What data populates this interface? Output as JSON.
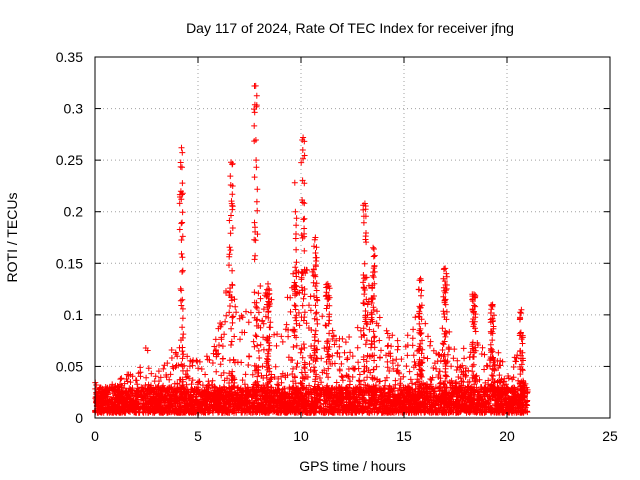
{
  "chart_data": {
    "type": "scatter",
    "title": "Day 117 of 2024, Rate Of TEC Index for receiver jfng",
    "xlabel": "GPS time / hours",
    "ylabel": "ROTI / TECUs",
    "xlim": [
      0,
      25
    ],
    "ylim": [
      0,
      0.35
    ],
    "x_ticks": [
      0,
      5,
      10,
      15,
      20,
      25
    ],
    "x_tick_labels": [
      "0",
      "5",
      "10",
      "15",
      "20",
      "25"
    ],
    "y_ticks": [
      0,
      0.05,
      0.1,
      0.15,
      0.2,
      0.25,
      0.3,
      0.35
    ],
    "y_tick_labels": [
      "0",
      "0.05",
      "0.1",
      "0.15",
      "0.2",
      "0.25",
      "0.3",
      "0.35"
    ],
    "grid": true,
    "marker": "+",
    "series_color": "#ff0000",
    "data_x_range": [
      0,
      21
    ],
    "baseline_band": [
      0.005,
      0.03
    ],
    "envelope": [
      [
        0.0,
        0.035
      ],
      [
        0.5,
        0.03
      ],
      [
        1.0,
        0.035
      ],
      [
        1.5,
        0.045
      ],
      [
        2.0,
        0.04
      ],
      [
        2.5,
        0.07
      ],
      [
        3.0,
        0.045
      ],
      [
        3.5,
        0.055
      ],
      [
        4.0,
        0.08
      ],
      [
        4.5,
        0.06
      ],
      [
        5.0,
        0.06
      ],
      [
        5.5,
        0.06
      ],
      [
        6.0,
        0.09
      ],
      [
        6.5,
        0.15
      ],
      [
        7.0,
        0.1
      ],
      [
        7.5,
        0.12
      ],
      [
        8.0,
        0.13
      ],
      [
        8.5,
        0.12
      ],
      [
        9.0,
        0.11
      ],
      [
        9.5,
        0.13
      ],
      [
        10.0,
        0.15
      ],
      [
        10.5,
        0.15
      ],
      [
        11.0,
        0.1
      ],
      [
        11.5,
        0.09
      ],
      [
        12.0,
        0.08
      ],
      [
        12.5,
        0.08
      ],
      [
        13.0,
        0.12
      ],
      [
        13.5,
        0.14
      ],
      [
        14.0,
        0.09
      ],
      [
        14.5,
        0.08
      ],
      [
        15.0,
        0.07
      ],
      [
        15.5,
        0.1
      ],
      [
        16.0,
        0.1
      ],
      [
        16.5,
        0.07
      ],
      [
        17.0,
        0.12
      ],
      [
        17.5,
        0.06
      ],
      [
        18.0,
        0.07
      ],
      [
        18.5,
        0.09
      ],
      [
        19.0,
        0.06
      ],
      [
        19.5,
        0.08
      ],
      [
        20.0,
        0.04
      ],
      [
        20.5,
        0.08
      ],
      [
        21.0,
        0.03
      ]
    ],
    "spikes": [
      {
        "x": 4.2,
        "max": 0.262
      },
      {
        "x": 6.6,
        "max": 0.248
      },
      {
        "x": 7.8,
        "max": 0.322
      },
      {
        "x": 10.1,
        "max": 0.272
      },
      {
        "x": 9.7,
        "max": 0.228
      },
      {
        "x": 13.1,
        "max": 0.208
      },
      {
        "x": 13.5,
        "max": 0.165
      },
      {
        "x": 10.7,
        "max": 0.175
      },
      {
        "x": 17.0,
        "max": 0.145
      },
      {
        "x": 15.8,
        "max": 0.135
      },
      {
        "x": 19.3,
        "max": 0.11
      },
      {
        "x": 20.7,
        "max": 0.105
      },
      {
        "x": 8.4,
        "max": 0.13
      },
      {
        "x": 11.3,
        "max": 0.13
      },
      {
        "x": 18.4,
        "max": 0.12
      }
    ]
  }
}
